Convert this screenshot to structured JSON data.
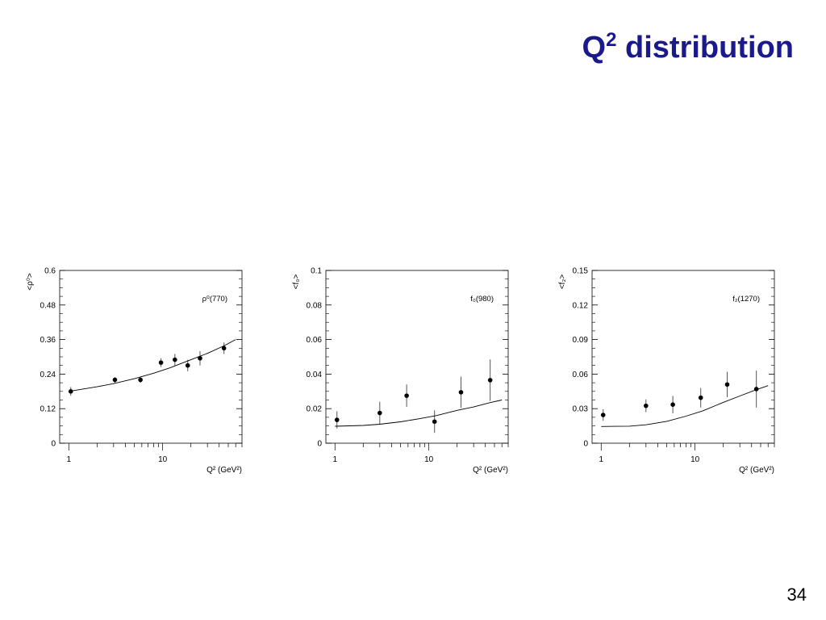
{
  "slide": {
    "title_base": "Q",
    "title_sup": "2",
    "title_rest": " distribution",
    "page_number": "34"
  },
  "chart_data": [
    {
      "type": "scatter",
      "panel_label": "ρ⁰(770)",
      "ylabel": "<ρ⁰>",
      "xlabel": "Q² (GeV²)",
      "xscale": "log",
      "xlim": [
        0.8,
        70
      ],
      "ylim": [
        0,
        0.6
      ],
      "yticks": [
        "0",
        "0.12",
        "0.24",
        "0.36",
        "0.48",
        "0.6"
      ],
      "xticks": [
        "1",
        "10"
      ],
      "grid": false,
      "series": [
        {
          "kind": "points",
          "x": [
            1.05,
            3.1,
            5.8,
            9.6,
            13.5,
            18.5,
            25,
            45
          ],
          "y": [
            0.18,
            0.22,
            0.22,
            0.28,
            0.29,
            0.27,
            0.295,
            0.33
          ],
          "err": [
            0.015,
            0.01,
            0.01,
            0.015,
            0.02,
            0.02,
            0.025,
            0.02
          ]
        },
        {
          "kind": "curve",
          "x": [
            1,
            2,
            3,
            5,
            8,
            12,
            20,
            30,
            45,
            60
          ],
          "y": [
            0.18,
            0.196,
            0.207,
            0.224,
            0.243,
            0.262,
            0.29,
            0.312,
            0.338,
            0.36
          ]
        }
      ]
    },
    {
      "type": "scatter",
      "panel_label": "f₀(980)",
      "ylabel": "<f₀>",
      "xlabel": "Q² (GeV²)",
      "xscale": "log",
      "xlim": [
        0.8,
        70
      ],
      "ylim": [
        0,
        0.1
      ],
      "yticks": [
        "0",
        "0.02",
        "0.04",
        "0.06",
        "0.08",
        "0.1"
      ],
      "xticks": [
        "1",
        "10"
      ],
      "grid": false,
      "series": [
        {
          "kind": "points",
          "x": [
            1.05,
            3.0,
            5.8,
            11.5,
            22,
            45
          ],
          "y": [
            0.0135,
            0.0175,
            0.0275,
            0.0125,
            0.0295,
            0.0365
          ],
          "err": [
            0.005,
            0.0065,
            0.0065,
            0.0065,
            0.009,
            0.012
          ]
        },
        {
          "kind": "curve",
          "x": [
            1,
            2,
            3,
            5,
            8,
            12,
            20,
            30,
            45,
            60
          ],
          "y": [
            0.0098,
            0.0103,
            0.011,
            0.0124,
            0.0142,
            0.016,
            0.019,
            0.021,
            0.0235,
            0.025
          ]
        }
      ]
    },
    {
      "type": "scatter",
      "panel_label": "f₂(1270)",
      "ylabel": "<f₂>",
      "xlabel": "Q² (GeV²)",
      "xscale": "log",
      "xlim": [
        0.8,
        70
      ],
      "ylim": [
        0,
        0.15
      ],
      "yticks": [
        "0",
        "0.03",
        "0.06",
        "0.09",
        "0.12",
        "0.15"
      ],
      "xticks": [
        "1",
        "10"
      ],
      "grid": false,
      "series": [
        {
          "kind": "points",
          "x": [
            1.05,
            3.0,
            5.8,
            11.5,
            22,
            45
          ],
          "y": [
            0.0245,
            0.0325,
            0.0335,
            0.0395,
            0.051,
            0.047
          ],
          "err": [
            0.005,
            0.0055,
            0.0075,
            0.0085,
            0.011,
            0.016
          ]
        },
        {
          "kind": "curve",
          "x": [
            1,
            2,
            3,
            5,
            8,
            12,
            20,
            30,
            45,
            60
          ],
          "y": [
            0.0145,
            0.0148,
            0.016,
            0.019,
            0.0235,
            0.028,
            0.0355,
            0.041,
            0.0465,
            0.05
          ]
        }
      ]
    }
  ]
}
